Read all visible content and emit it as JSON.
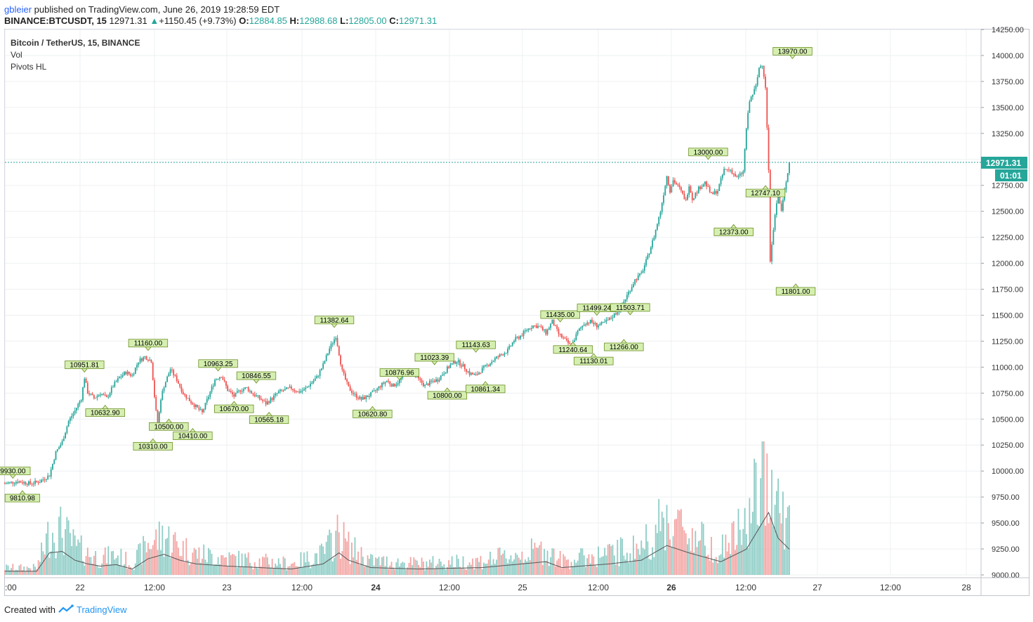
{
  "header": {
    "user": "gbleier",
    "published_text": "published on TradingView.com, June 26, 2019 19:28:59 EDT",
    "symbol_line": "BINANCE:BTCUSDT, 15",
    "last_price": "12971.31",
    "change_arrow": "▲",
    "change": "+1150.45 (+9.73%)",
    "o_label": "O:",
    "o_value": "12884.85",
    "h_label": "H:",
    "h_value": "12988.68",
    "l_label": "L:",
    "l_value": "12805.00",
    "c_label": "C:",
    "c_value": "12971.31"
  },
  "legend": {
    "title": "Bitcoin / TetherUS, 15, BINANCE",
    "indicator1": "Vol",
    "indicator2": "Pivots HL"
  },
  "footer": {
    "created_with": "Created with",
    "brand": "TradingView"
  },
  "colors": {
    "up": "#26a69a",
    "down": "#ef5350",
    "up_vol": "#8fcdc6",
    "down_vol": "#f3a6a4",
    "grid": "#eef0f3",
    "pivot_fill": "#d5efb0",
    "pivot_border": "#6b8e23",
    "price_tag": "#26a69a"
  },
  "chart_data": {
    "type": "candlestick",
    "title": "Bitcoin / TetherUS, 15, BINANCE",
    "ylim": [
      9000,
      14250
    ],
    "y_ticks": [
      "14250.00",
      "14000.00",
      "13750.00",
      "13500.00",
      "13250.00",
      "13000.00",
      "12750.00",
      "12500.00",
      "12250.00",
      "12000.00",
      "11750.00",
      "11500.00",
      "11250.00",
      "11000.00",
      "10750.00",
      "10500.00",
      "10250.00",
      "10000.00",
      "9750.00",
      "9500.00",
      "9250.00",
      "9000.00"
    ],
    "x_ticks": [
      ":00",
      "22",
      "12:00",
      "23",
      "12:00",
      "24",
      "12:00",
      "25",
      "12:00",
      "26",
      "12:00",
      "27",
      "12:00",
      "28"
    ],
    "bold_x_ticks": [
      "24",
      "26"
    ],
    "last_price_label": "12971.31",
    "countdown_label": "01:01",
    "path_points": [
      [
        0,
        9880
      ],
      [
        8,
        9900
      ],
      [
        16,
        9880
      ],
      [
        22,
        9900
      ],
      [
        28,
        9960
      ],
      [
        32,
        10180
      ],
      [
        36,
        10280
      ],
      [
        40,
        10480
      ],
      [
        44,
        10580
      ],
      [
        48,
        10700
      ],
      [
        50,
        10900
      ],
      [
        52,
        10760
      ],
      [
        56,
        10700
      ],
      [
        60,
        10750
      ],
      [
        64,
        10700
      ],
      [
        68,
        10820
      ],
      [
        72,
        10900
      ],
      [
        76,
        10950
      ],
      [
        80,
        10920
      ],
      [
        84,
        11060
      ],
      [
        88,
        11100
      ],
      [
        92,
        11060
      ],
      [
        94,
        10720
      ],
      [
        96,
        10420
      ],
      [
        98,
        10700
      ],
      [
        100,
        10820
      ],
      [
        104,
        10980
      ],
      [
        108,
        10880
      ],
      [
        112,
        10750
      ],
      [
        116,
        10680
      ],
      [
        120,
        10620
      ],
      [
        124,
        10560
      ],
      [
        128,
        10720
      ],
      [
        132,
        10880
      ],
      [
        136,
        10920
      ],
      [
        140,
        10780
      ],
      [
        144,
        10720
      ],
      [
        148,
        10780
      ],
      [
        152,
        10800
      ],
      [
        156,
        10740
      ],
      [
        160,
        10700
      ],
      [
        164,
        10650
      ],
      [
        168,
        10700
      ],
      [
        172,
        10760
      ],
      [
        176,
        10780
      ],
      [
        180,
        10800
      ],
      [
        184,
        10760
      ],
      [
        188,
        10780
      ],
      [
        192,
        10840
      ],
      [
        196,
        10900
      ],
      [
        200,
        11020
      ],
      [
        204,
        11180
      ],
      [
        208,
        11300
      ],
      [
        210,
        11130
      ],
      [
        212,
        10960
      ],
      [
        216,
        10800
      ],
      [
        220,
        10730
      ],
      [
        224,
        10690
      ],
      [
        228,
        10720
      ],
      [
        232,
        10760
      ],
      [
        236,
        10820
      ],
      [
        240,
        10870
      ],
      [
        244,
        10820
      ],
      [
        248,
        10870
      ],
      [
        252,
        10960
      ],
      [
        256,
        10940
      ],
      [
        260,
        10880
      ],
      [
        264,
        10820
      ],
      [
        268,
        10860
      ],
      [
        272,
        10880
      ],
      [
        276,
        10950
      ],
      [
        280,
        11020
      ],
      [
        284,
        11060
      ],
      [
        288,
        11010
      ],
      [
        292,
        10940
      ],
      [
        296,
        10920
      ],
      [
        300,
        10980
      ],
      [
        304,
        11030
      ],
      [
        308,
        11080
      ],
      [
        312,
        11120
      ],
      [
        316,
        11160
      ],
      [
        320,
        11260
      ],
      [
        324,
        11300
      ],
      [
        328,
        11360
      ],
      [
        332,
        11400
      ],
      [
        336,
        11390
      ],
      [
        340,
        11330
      ],
      [
        344,
        11440
      ],
      [
        348,
        11320
      ],
      [
        352,
        11260
      ],
      [
        356,
        11200
      ],
      [
        360,
        11340
      ],
      [
        364,
        11420
      ],
      [
        368,
        11440
      ],
      [
        372,
        11400
      ],
      [
        376,
        11420
      ],
      [
        380,
        11460
      ],
      [
        384,
        11520
      ],
      [
        388,
        11600
      ],
      [
        392,
        11720
      ],
      [
        396,
        11840
      ],
      [
        400,
        11900
      ],
      [
        404,
        12060
      ],
      [
        408,
        12260
      ],
      [
        412,
        12500
      ],
      [
        416,
        12840
      ],
      [
        418,
        12700
      ],
      [
        420,
        12800
      ],
      [
        424,
        12720
      ],
      [
        428,
        12600
      ],
      [
        430,
        12760
      ],
      [
        432,
        12620
      ],
      [
        436,
        12720
      ],
      [
        440,
        12780
      ],
      [
        444,
        12660
      ],
      [
        448,
        12700
      ],
      [
        452,
        12900
      ],
      [
        456,
        12900
      ],
      [
        460,
        12820
      ],
      [
        464,
        12880
      ],
      [
        466,
        13300
      ],
      [
        468,
        13560
      ],
      [
        472,
        13700
      ],
      [
        474,
        13880
      ],
      [
        476,
        13920
      ],
      [
        478,
        13700
      ],
      [
        480,
        12900
      ],
      [
        481,
        12000
      ],
      [
        482,
        12200
      ],
      [
        484,
        12480
      ],
      [
        486,
        12650
      ],
      [
        488,
        12500
      ],
      [
        490,
        12700
      ],
      [
        493,
        12971
      ]
    ],
    "vol_path": [
      [
        0,
        0.05
      ],
      [
        20,
        0.05
      ],
      [
        28,
        0.3
      ],
      [
        36,
        0.32
      ],
      [
        44,
        0.2
      ],
      [
        52,
        0.15
      ],
      [
        60,
        0.12
      ],
      [
        70,
        0.14
      ],
      [
        80,
        0.08
      ],
      [
        90,
        0.22
      ],
      [
        100,
        0.28
      ],
      [
        110,
        0.2
      ],
      [
        120,
        0.15
      ],
      [
        140,
        0.12
      ],
      [
        160,
        0.1
      ],
      [
        180,
        0.08
      ],
      [
        200,
        0.15
      ],
      [
        210,
        0.3
      ],
      [
        216,
        0.2
      ],
      [
        230,
        0.1
      ],
      [
        260,
        0.08
      ],
      [
        300,
        0.1
      ],
      [
        340,
        0.18
      ],
      [
        350,
        0.1
      ],
      [
        380,
        0.15
      ],
      [
        400,
        0.2
      ],
      [
        416,
        0.4
      ],
      [
        430,
        0.3
      ],
      [
        450,
        0.18
      ],
      [
        466,
        0.35
      ],
      [
        480,
        0.85
      ],
      [
        486,
        0.5
      ],
      [
        493,
        0.35
      ]
    ],
    "pivots_high": [
      {
        "label": "9930.00",
        "t": 5,
        "price": 9930
      },
      {
        "label": "10951.81",
        "t": 50,
        "price": 10951.81
      },
      {
        "label": "11160.00",
        "t": 90,
        "price": 11160
      },
      {
        "label": "10963.25",
        "t": 134,
        "price": 10963.25
      },
      {
        "label": "10846.55",
        "t": 158,
        "price": 10846.55
      },
      {
        "label": "11382.64",
        "t": 207,
        "price": 11382.64
      },
      {
        "label": "10876.96",
        "t": 248,
        "price": 10876.96
      },
      {
        "label": "11023.39",
        "t": 270,
        "price": 11023.39
      },
      {
        "label": "11143.63",
        "t": 296,
        "price": 11143.63
      },
      {
        "label": "11435.00",
        "t": 349,
        "price": 11435
      },
      {
        "label": "11499.24",
        "t": 372,
        "price": 11499.24
      },
      {
        "label": "11503.71",
        "t": 393,
        "price": 11503.71
      },
      {
        "label": "13000.00",
        "t": 442,
        "price": 13000
      },
      {
        "label": "13970.00",
        "t": 495,
        "price": 13970
      }
    ],
    "pivots_low": [
      {
        "label": "9810.98",
        "t": 11,
        "price": 9810.98
      },
      {
        "label": "10632.90",
        "t": 63,
        "price": 10632.9
      },
      {
        "label": "10310.00",
        "t": 93,
        "price": 10310
      },
      {
        "label": "10500.00",
        "t": 103,
        "price": 10500
      },
      {
        "label": "10410.00",
        "t": 118,
        "price": 10410
      },
      {
        "label": "10670.00",
        "t": 144,
        "price": 10670
      },
      {
        "label": "10565.18",
        "t": 166,
        "price": 10565.18
      },
      {
        "label": "10620.80",
        "t": 231,
        "price": 10620.8
      },
      {
        "label": "10800.00",
        "t": 278,
        "price": 10800
      },
      {
        "label": "10861.34",
        "t": 302,
        "price": 10861.34
      },
      {
        "label": "11240.64",
        "t": 357,
        "price": 11240.64
      },
      {
        "label": "11130.01",
        "t": 370,
        "price": 11130.01
      },
      {
        "label": "11266.00",
        "t": 389,
        "price": 11266
      },
      {
        "label": "12373.00",
        "t": 458,
        "price": 12373
      },
      {
        "label": "12747.10",
        "t": 478,
        "price": 12747.1
      },
      {
        "label": "11801.00",
        "t": 497,
        "price": 11801
      }
    ]
  }
}
